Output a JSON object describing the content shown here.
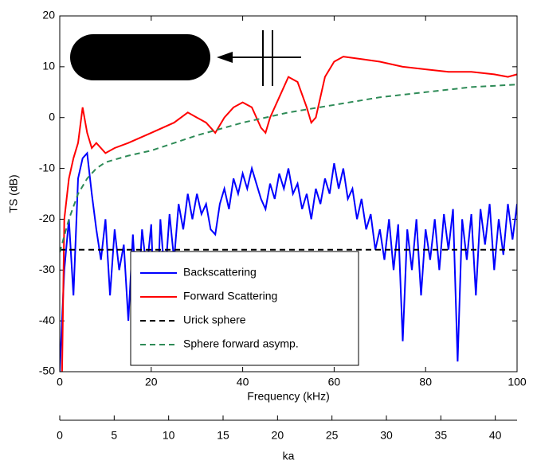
{
  "chart_data": {
    "type": "line",
    "xlabel": "Frequency (kHz)",
    "ylabel": "TS (dB)",
    "x2label": "ka",
    "xlim": [
      0,
      100
    ],
    "xticks": [
      0,
      20,
      40,
      60,
      80,
      100
    ],
    "ylim": [
      -50,
      20
    ],
    "yticks": [
      -50,
      -40,
      -30,
      -20,
      -10,
      0,
      10,
      20
    ],
    "x2lim": [
      0,
      42
    ],
    "x2ticks": [
      0,
      5,
      10,
      15,
      20,
      25,
      30,
      35,
      40
    ],
    "legend": "lower center",
    "series": [
      {
        "name": "Backscattering",
        "color": "#0000ff",
        "dash": "solid",
        "x": [
          0,
          1,
          2,
          3,
          4,
          5,
          6,
          7,
          8,
          9,
          10,
          11,
          12,
          13,
          14,
          15,
          16,
          17,
          18,
          19,
          20,
          21,
          22,
          23,
          24,
          25,
          26,
          27,
          28,
          29,
          30,
          31,
          32,
          33,
          34,
          35,
          36,
          37,
          38,
          39,
          40,
          41,
          42,
          43,
          44,
          45,
          46,
          47,
          48,
          49,
          50,
          51,
          52,
          53,
          54,
          55,
          56,
          57,
          58,
          59,
          60,
          61,
          62,
          63,
          64,
          65,
          66,
          67,
          68,
          69,
          70,
          71,
          72,
          73,
          74,
          75,
          76,
          77,
          78,
          79,
          80,
          81,
          82,
          83,
          84,
          85,
          86,
          87,
          88,
          89,
          90,
          91,
          92,
          93,
          94,
          95,
          96,
          97,
          98,
          99,
          100
        ],
        "values": [
          -50,
          -30,
          -20,
          -35,
          -12,
          -8,
          -7,
          -15,
          -22,
          -28,
          -20,
          -35,
          -22,
          -30,
          -25,
          -40,
          -23,
          -38,
          -22,
          -30,
          -21,
          -45,
          -20,
          -32,
          -19,
          -28,
          -17,
          -22,
          -15,
          -20,
          -15,
          -19,
          -17,
          -22,
          -23,
          -17,
          -14,
          -18,
          -12,
          -15,
          -11,
          -14,
          -10,
          -13,
          -16,
          -18,
          -13,
          -16,
          -11,
          -14,
          -10,
          -15,
          -13,
          -18,
          -15,
          -20,
          -14,
          -17,
          -12,
          -15,
          -9,
          -14,
          -10,
          -16,
          -14,
          -20,
          -16,
          -22,
          -19,
          -26,
          -22,
          -28,
          -20,
          -30,
          -21,
          -44,
          -22,
          -30,
          -20,
          -35,
          -22,
          -28,
          -20,
          -30,
          -19,
          -26,
          -18,
          -48,
          -20,
          -28,
          -19,
          -35,
          -18,
          -25,
          -17,
          -30,
          -20,
          -27,
          -17,
          -24,
          -17
        ]
      },
      {
        "name": "Forward Scattering",
        "color": "#ff0000",
        "dash": "solid",
        "x": [
          0.5,
          1,
          2,
          3,
          4,
          5,
          6,
          7,
          8,
          10,
          12,
          15,
          20,
          25,
          28,
          30,
          32,
          34,
          36,
          38,
          40,
          42,
          44,
          45,
          46,
          48,
          50,
          52,
          54,
          55,
          56,
          58,
          60,
          62,
          66,
          70,
          75,
          80,
          85,
          90,
          95,
          98,
          100
        ],
        "values": [
          -50,
          -20,
          -12,
          -8,
          -5,
          2,
          -3,
          -6,
          -5,
          -7,
          -6,
          -5,
          -3,
          -1,
          1,
          0,
          -1,
          -3,
          0,
          2,
          3,
          2,
          -2,
          -3,
          0,
          4,
          8,
          7,
          2,
          -1,
          0,
          8,
          11,
          12,
          11.5,
          11,
          10,
          9.5,
          9,
          9,
          8.5,
          8,
          8.5
        ]
      },
      {
        "name": "Urick sphere",
        "color": "#000000",
        "dash": "dashed",
        "x": [
          0,
          100
        ],
        "values": [
          -26,
          -26
        ]
      },
      {
        "name": "Sphere forward asymp.",
        "color": "#2e8b57",
        "dash": "dashed",
        "x": [
          0,
          2,
          4,
          6,
          8,
          10,
          15,
          20,
          30,
          40,
          50,
          60,
          70,
          80,
          90,
          100
        ],
        "values": [
          -26.5,
          -20,
          -15,
          -12,
          -10,
          -8.8,
          -7.5,
          -6.5,
          -3.5,
          -1,
          1,
          2.5,
          4,
          5,
          6,
          6.5
        ]
      }
    ]
  }
}
